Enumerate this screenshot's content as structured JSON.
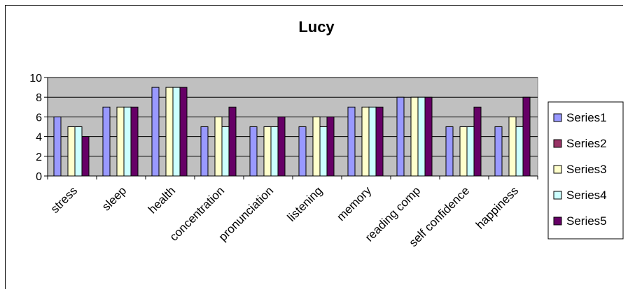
{
  "chart_data": {
    "type": "bar",
    "title": "Lucy",
    "xlabel": "",
    "ylabel": "",
    "ylim": [
      0,
      10
    ],
    "yticks": [
      0,
      2,
      4,
      6,
      8,
      10
    ],
    "grid": true,
    "legend_position": "right",
    "plot_background": "#c0c0c0",
    "categories": [
      "stress",
      "sleep",
      "health",
      "concentration",
      "pronunciation",
      "listening",
      "memory",
      "reading comp",
      "self confidence",
      "happiness"
    ],
    "series": [
      {
        "name": "Series1",
        "color": "#9999ff",
        "values": [
          6,
          7,
          9,
          5,
          5,
          5,
          7,
          8,
          5,
          5
        ]
      },
      {
        "name": "Series2",
        "color": "#993366",
        "values": [
          0,
          0,
          0,
          0,
          0,
          0,
          0,
          0,
          0,
          0
        ]
      },
      {
        "name": "Series3",
        "color": "#ffffcc",
        "values": [
          5,
          7,
          9,
          6,
          5,
          6,
          7,
          8,
          5,
          6
        ]
      },
      {
        "name": "Series4",
        "color": "#ccffff",
        "values": [
          5,
          7,
          9,
          5,
          5,
          5,
          7,
          8,
          5,
          5
        ]
      },
      {
        "name": "Series5",
        "color": "#660066",
        "values": [
          4,
          7,
          9,
          7,
          6,
          6,
          7,
          8,
          7,
          8
        ]
      }
    ]
  }
}
